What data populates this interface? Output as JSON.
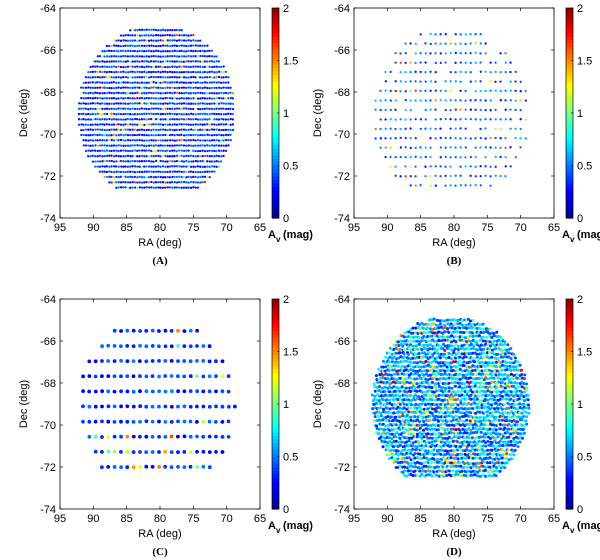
{
  "colormap": [
    "#00008f",
    "#0000ff",
    "#0080ff",
    "#00ffff",
    "#80ff80",
    "#ffff00",
    "#ff8000",
    "#ff0000",
    "#800000"
  ],
  "chart_data": [
    {
      "panel": "A",
      "type": "scatter",
      "caption": "(A)",
      "xlabel": "RA (deg)",
      "ylabel": "Dec (deg)",
      "xlim": [
        95,
        65
      ],
      "ylim": [
        -74,
        -64
      ],
      "xticks": [
        "95",
        "90",
        "85",
        "80",
        "75",
        "70",
        "65"
      ],
      "yticks": [
        "-64",
        "-66",
        "-68",
        "-70",
        "-72",
        "-74"
      ],
      "colorbar": {
        "label": "A",
        "label_sub": "v",
        "label_unit": "(mag)",
        "range": [
          0,
          2
        ],
        "ticks": [
          "0",
          "0.5",
          "1",
          "1.5",
          "2"
        ]
      },
      "sampling": {
        "row_spacing_deg": 0.25,
        "point_spacing_deg": 0.35,
        "mean_av": 0.35,
        "marker": "small"
      }
    },
    {
      "panel": "B",
      "type": "scatter",
      "caption": "(B)",
      "xlabel": "RA (deg)",
      "ylabel": "Dec (deg)",
      "xlim": [
        95,
        65
      ],
      "ylim": [
        -74,
        -64
      ],
      "xticks": [
        "95",
        "90",
        "85",
        "80",
        "75",
        "70",
        "65"
      ],
      "yticks": [
        "-64",
        "-66",
        "-68",
        "-70",
        "-72",
        "-74"
      ],
      "colorbar": {
        "label": "A",
        "label_sub": "v",
        "label_unit": "(mag)",
        "range": [
          0,
          2
        ],
        "ticks": [
          "0",
          "0.5",
          "1",
          "1.5",
          "2"
        ]
      },
      "sampling": {
        "row_spacing_deg": 0.45,
        "point_spacing_deg": 0.75,
        "mean_av": 0.45,
        "marker": "small"
      }
    },
    {
      "panel": "C",
      "type": "scatter",
      "caption": "(C)",
      "xlabel": "RA (deg)",
      "ylabel": "Dec (deg)",
      "xlim": [
        95,
        65
      ],
      "ylim": [
        -74,
        -64
      ],
      "xticks": [
        "95",
        "90",
        "85",
        "80",
        "75",
        "70",
        "65"
      ],
      "yticks": [
        "-64",
        "-66",
        "-68",
        "-70",
        "-72",
        "-74"
      ],
      "colorbar": {
        "label": "A",
        "label_sub": "v",
        "label_unit": "(mag)",
        "range": [
          0,
          2
        ],
        "ticks": [
          "0",
          "0.5",
          "1",
          "1.5",
          "2"
        ]
      },
      "sampling": {
        "row_spacing_deg": 0.72,
        "point_spacing_deg": 0.95,
        "mean_av": 0.35,
        "marker": "large"
      }
    },
    {
      "panel": "D",
      "type": "scatter",
      "caption": "(D)",
      "xlabel": "RA (deg)",
      "ylabel": "Dec (deg)",
      "xlim": [
        95,
        65
      ],
      "ylim": [
        -74,
        -64
      ],
      "xticks": [
        "95",
        "90",
        "85",
        "80",
        "75",
        "70",
        "65"
      ],
      "yticks": [
        "-64",
        "-66",
        "-68",
        "-70",
        "-72",
        "-74"
      ],
      "colorbar": {
        "label": "A",
        "label_sub": "v",
        "label_unit": "(mag)",
        "range": [
          0,
          2
        ],
        "ticks": [
          "0",
          "0.5",
          "1",
          "1.5",
          "2"
        ]
      },
      "sampling": {
        "row_spacing_deg": 0.2,
        "point_spacing_deg": 0.32,
        "mean_av": 0.5,
        "marker": "dense"
      }
    }
  ]
}
